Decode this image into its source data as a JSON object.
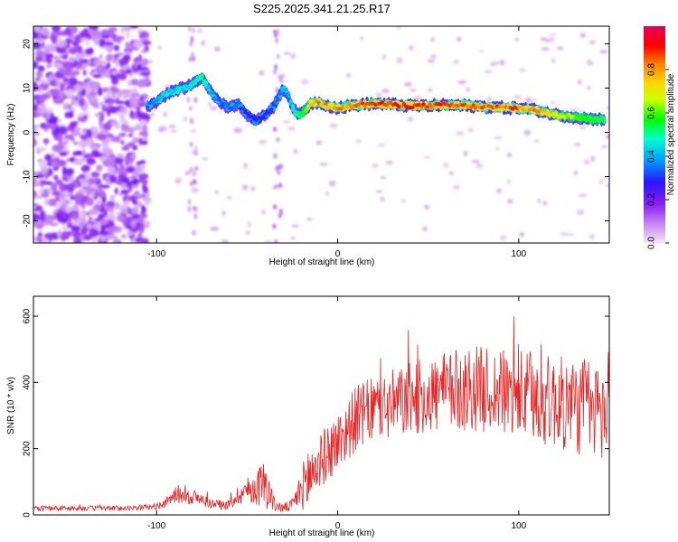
{
  "figure_title": "S225.2025.341.21.25.R17",
  "chart_data": [
    {
      "type": "heatmap",
      "title": "S225.2025.341.21.25.R17",
      "xlabel": "Height of straight line (km)",
      "ylabel": "Frequency (Hz)",
      "xlim": [
        -168,
        150
      ],
      "ylim": [
        -25,
        24
      ],
      "xticks": [
        -100,
        0,
        100
      ],
      "yticks": [
        -20,
        -10,
        0,
        10,
        20
      ],
      "colorbar": {
        "label": "Normalized spectral amplitude",
        "range": [
          0,
          1
        ],
        "ticks": [
          0.0,
          0.2,
          0.4,
          0.6,
          0.8
        ],
        "colormap": [
          "#f4e8f8",
          "#c98ef0",
          "#8a1ef2",
          "#2a16ff",
          "#009cff",
          "#00ffcc",
          "#00ff00",
          "#c8ff00",
          "#ffd800",
          "#ff7a00",
          "#ff0000",
          "#e8005a"
        ]
      },
      "ridge": {
        "x": [
          -105,
          -100,
          -95,
          -90,
          -85,
          -80,
          -75,
          -70,
          -65,
          -60,
          -55,
          -50,
          -45,
          -40,
          -35,
          -30,
          -27,
          -24,
          -21,
          -18,
          -15,
          -10,
          -5,
          0,
          10,
          20,
          30,
          40,
          50,
          60,
          70,
          80,
          90,
          100,
          110,
          120,
          130,
          140,
          148
        ],
        "freq": [
          6,
          7,
          8.5,
          9.5,
          10,
          11,
          12.5,
          9,
          7,
          5.5,
          6.5,
          4,
          2.5,
          4,
          6,
          10,
          8,
          5,
          4,
          5,
          6.5,
          6.8,
          6,
          5.5,
          6.2,
          6.5,
          6.3,
          6,
          6,
          6.2,
          6,
          5.8,
          5.6,
          5.5,
          5,
          4,
          3.5,
          3,
          3
        ],
        "amplitude": [
          0.35,
          0.4,
          0.45,
          0.45,
          0.45,
          0.45,
          0.5,
          0.4,
          0.35,
          0.35,
          0.35,
          0.3,
          0.3,
          0.3,
          0.35,
          0.4,
          0.4,
          0.45,
          0.55,
          0.65,
          0.8,
          0.85,
          0.85,
          0.85,
          0.9,
          0.95,
          0.95,
          0.95,
          0.95,
          0.95,
          0.9,
          0.9,
          0.9,
          0.9,
          0.85,
          0.75,
          0.65,
          0.6,
          0.55
        ]
      },
      "noise_region_x": [
        -168,
        -105
      ]
    },
    {
      "type": "line",
      "xlabel": "Height of straight line (km)",
      "ylabel": "SNR (10 * v/v)",
      "xlim": [
        -168,
        150
      ],
      "ylim": [
        0,
        660
      ],
      "xticks": [
        -100,
        0,
        100
      ],
      "yticks": [
        0,
        200,
        400,
        600
      ],
      "series": [
        {
          "name": "SNR",
          "color": "#ee2222",
          "x_envelope": [
            -168,
            -120,
            -110,
            -100,
            -95,
            -90,
            -85,
            -80,
            -75,
            -70,
            -65,
            -60,
            -55,
            -50,
            -45,
            -40,
            -35,
            -30,
            -25,
            -20,
            -15,
            -10,
            -5,
            0,
            10,
            20,
            30,
            40,
            50,
            60,
            70,
            80,
            90,
            100,
            110,
            120,
            130,
            140,
            150
          ],
          "center": [
            20,
            20,
            22,
            25,
            35,
            60,
            65,
            55,
            45,
            35,
            30,
            30,
            60,
            75,
            80,
            100,
            30,
            20,
            30,
            80,
            120,
            160,
            190,
            220,
            290,
            320,
            330,
            350,
            360,
            370,
            380,
            380,
            370,
            360,
            350,
            340,
            330,
            320,
            300
          ],
          "spread": [
            8,
            8,
            8,
            10,
            15,
            25,
            35,
            25,
            20,
            15,
            15,
            15,
            30,
            40,
            50,
            80,
            20,
            15,
            20,
            60,
            130,
            80,
            90,
            90,
            100,
            100,
            110,
            110,
            120,
            120,
            130,
            130,
            130,
            140,
            140,
            140,
            150,
            150,
            150
          ]
        }
      ]
    }
  ]
}
